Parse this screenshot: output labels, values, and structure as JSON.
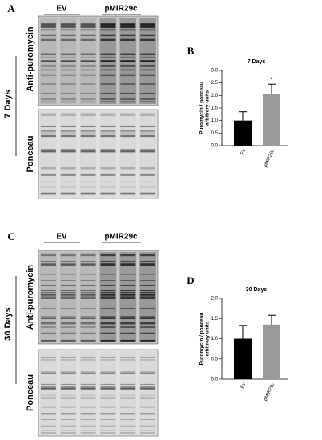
{
  "panels": [
    {
      "letter": "A",
      "ctrl": "EV",
      "treat": "pMIR29c",
      "top": "Anti-puromycin",
      "time": "7 Days",
      "bottom": "Ponceau",
      "chart": "B"
    },
    {
      "letter": "C",
      "ctrl": "EV",
      "treat": "pMIR29c",
      "top": "Anti-puromycin",
      "time": "30 Days",
      "bottom": "Ponceau",
      "chart": "D"
    }
  ],
  "chart_data": [
    {
      "type": "bar",
      "title": "7 Days",
      "ylabel": [
        "Puromycin / ponceau",
        "arbitrary units"
      ],
      "categories": [
        "Ev",
        "pMIR29c"
      ],
      "values": [
        1.0,
        2.05
      ],
      "errors": [
        0.35,
        0.4
      ],
      "colors": [
        "#000000",
        "#999999"
      ],
      "annotations": [
        {
          "category": 1,
          "text": "*"
        }
      ],
      "ylim": [
        0,
        3
      ],
      "yticks": [
        {
          "value": 0,
          "label": "0.0"
        },
        {
          "value": 0.5,
          "label": "0.5"
        },
        {
          "value": 1,
          "label": "1.0"
        },
        {
          "value": 1.5,
          "label": "1.5"
        },
        {
          "value": 2,
          "label": "2.0"
        },
        {
          "value": 2.5,
          "label": "2.5"
        },
        {
          "value": 3,
          "label": "3.0"
        }
      ]
    },
    {
      "type": "bar",
      "title": "30 Days",
      "ylabel": [
        "Puromycin / ponceau",
        "arbitrary units"
      ],
      "categories": [
        "Ev",
        "pMIR29c"
      ],
      "values": [
        1.0,
        1.35
      ],
      "errors": [
        0.33,
        0.23
      ],
      "colors": [
        "#000000",
        "#999999"
      ],
      "annotations": [],
      "ylim": [
        0,
        2
      ],
      "yticks": [
        {
          "value": 0,
          "label": "0.0"
        },
        {
          "value": 0.5,
          "label": "0.5"
        },
        {
          "value": 1,
          "label": "1.0"
        },
        {
          "value": 1.5,
          "label": "1.5"
        },
        {
          "value": 2,
          "label": "2.0"
        }
      ]
    }
  ]
}
